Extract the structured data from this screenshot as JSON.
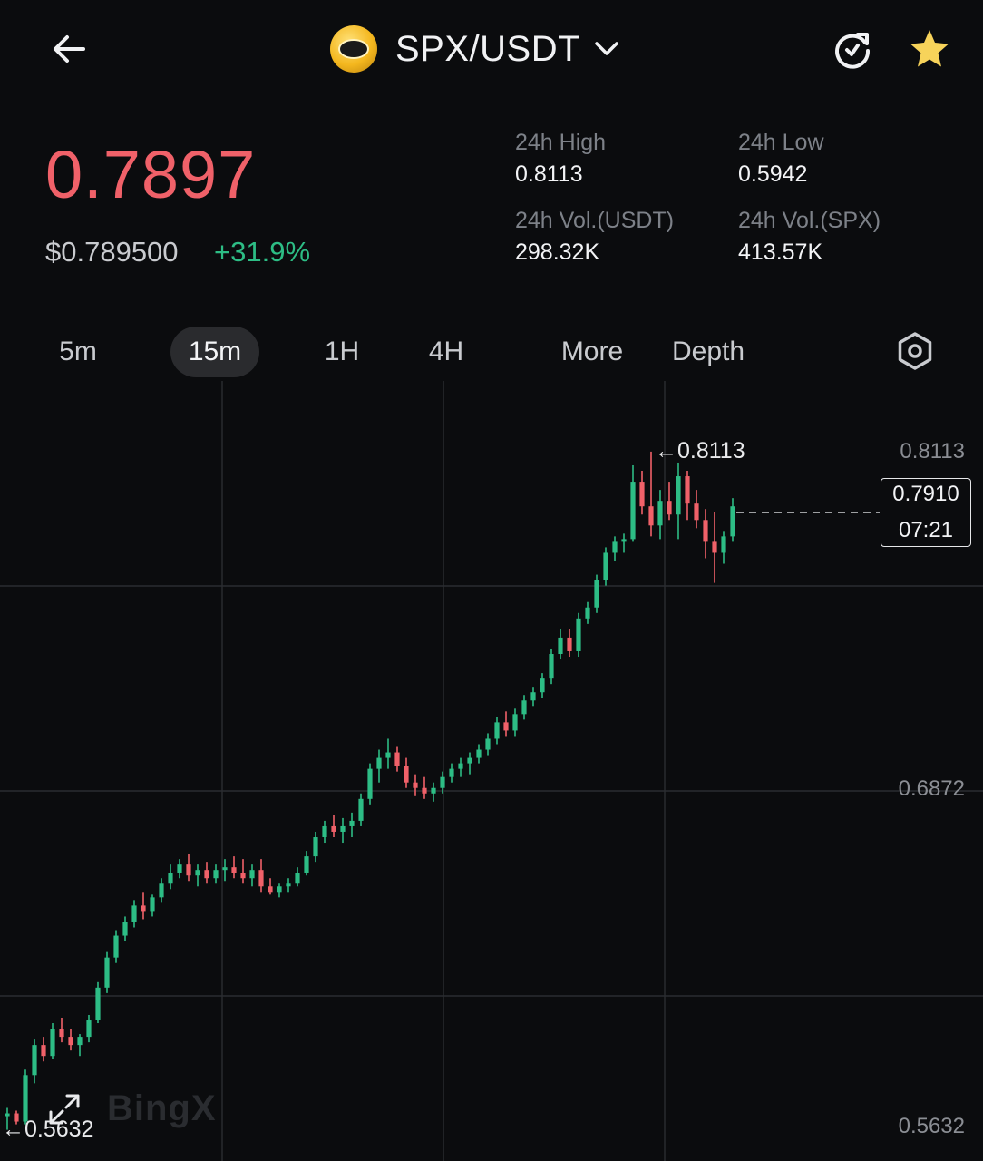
{
  "header": {
    "pair": "SPX/USDT",
    "icons": [
      "back-arrow-icon",
      "coin-logo-icon",
      "chevron-down-icon",
      "refresh-icon",
      "star-icon"
    ]
  },
  "ticker": {
    "last_price": "0.7897",
    "usd_price": "$0.789500",
    "change": "+31.9%",
    "stats": [
      {
        "label": "24h High",
        "value": "0.8113"
      },
      {
        "label": "24h Low",
        "value": "0.5942"
      },
      {
        "label": "24h Vol.(USDT)",
        "value": "298.32K"
      },
      {
        "label": "24h Vol.(SPX)",
        "value": "413.57K"
      }
    ]
  },
  "tabs": [
    {
      "label": "5m",
      "active": false
    },
    {
      "label": "15m",
      "active": true
    },
    {
      "label": "1H",
      "active": false
    },
    {
      "label": "4H",
      "active": false
    },
    {
      "label": "More",
      "active": false
    },
    {
      "label": "Depth",
      "active": false
    }
  ],
  "chart": {
    "y_labels": [
      "0.8113",
      "0.6872",
      "0.5632"
    ],
    "current_price": "0.7910",
    "countdown": "07:21",
    "high_marker": "←0.8113",
    "low_marker": "←0.5632",
    "watermark": "BingX"
  },
  "colors": {
    "up": "#2dbd85",
    "down": "#f06169",
    "background": "#0b0c0e"
  },
  "chart_data": {
    "type": "candlestick",
    "y_ticks": [
      0.8113,
      0.6872,
      0.5632
    ],
    "ylim": [
      0.5632,
      0.8113
    ],
    "high": 0.8113,
    "low": 0.5632,
    "current": 0.791,
    "candles_ohlc": [
      [
        0.568,
        0.571,
        0.563,
        0.569
      ],
      [
        0.569,
        0.57,
        0.565,
        0.566
      ],
      [
        0.566,
        0.585,
        0.565,
        0.583
      ],
      [
        0.583,
        0.596,
        0.58,
        0.594
      ],
      [
        0.594,
        0.597,
        0.588,
        0.59
      ],
      [
        0.59,
        0.602,
        0.589,
        0.6
      ],
      [
        0.6,
        0.604,
        0.595,
        0.597
      ],
      [
        0.597,
        0.6,
        0.592,
        0.594
      ],
      [
        0.594,
        0.598,
        0.59,
        0.597
      ],
      [
        0.597,
        0.605,
        0.595,
        0.603
      ],
      [
        0.603,
        0.617,
        0.602,
        0.615
      ],
      [
        0.615,
        0.628,
        0.613,
        0.626
      ],
      [
        0.626,
        0.636,
        0.624,
        0.634
      ],
      [
        0.634,
        0.641,
        0.632,
        0.639
      ],
      [
        0.639,
        0.647,
        0.637,
        0.645
      ],
      [
        0.645,
        0.65,
        0.64,
        0.643
      ],
      [
        0.643,
        0.649,
        0.641,
        0.648
      ],
      [
        0.648,
        0.655,
        0.646,
        0.653
      ],
      [
        0.653,
        0.66,
        0.651,
        0.657
      ],
      [
        0.657,
        0.662,
        0.655,
        0.66
      ],
      [
        0.66,
        0.664,
        0.654,
        0.656
      ],
      [
        0.656,
        0.66,
        0.652,
        0.658
      ],
      [
        0.658,
        0.661,
        0.653,
        0.655
      ],
      [
        0.655,
        0.66,
        0.653,
        0.658
      ],
      [
        0.658,
        0.662,
        0.654,
        0.659
      ],
      [
        0.659,
        0.663,
        0.655,
        0.657
      ],
      [
        0.657,
        0.662,
        0.653,
        0.655
      ],
      [
        0.655,
        0.66,
        0.652,
        0.658
      ],
      [
        0.658,
        0.662,
        0.65,
        0.652
      ],
      [
        0.652,
        0.655,
        0.649,
        0.65
      ],
      [
        0.65,
        0.653,
        0.648,
        0.652
      ],
      [
        0.652,
        0.655,
        0.65,
        0.653
      ],
      [
        0.653,
        0.659,
        0.652,
        0.657
      ],
      [
        0.657,
        0.665,
        0.656,
        0.663
      ],
      [
        0.663,
        0.672,
        0.661,
        0.67
      ],
      [
        0.67,
        0.676,
        0.668,
        0.674
      ],
      [
        0.674,
        0.678,
        0.67,
        0.672
      ],
      [
        0.672,
        0.677,
        0.668,
        0.674
      ],
      [
        0.674,
        0.679,
        0.67,
        0.676
      ],
      [
        0.676,
        0.686,
        0.674,
        0.684
      ],
      [
        0.684,
        0.697,
        0.682,
        0.695
      ],
      [
        0.695,
        0.702,
        0.69,
        0.699
      ],
      [
        0.699,
        0.706,
        0.695,
        0.701
      ],
      [
        0.701,
        0.703,
        0.694,
        0.696
      ],
      [
        0.696,
        0.699,
        0.688,
        0.69
      ],
      [
        0.69,
        0.693,
        0.685,
        0.688
      ],
      [
        0.688,
        0.692,
        0.684,
        0.686
      ],
      [
        0.686,
        0.69,
        0.683,
        0.688
      ],
      [
        0.688,
        0.694,
        0.686,
        0.692
      ],
      [
        0.692,
        0.697,
        0.69,
        0.695
      ],
      [
        0.695,
        0.699,
        0.692,
        0.697
      ],
      [
        0.697,
        0.701,
        0.693,
        0.699
      ],
      [
        0.699,
        0.704,
        0.697,
        0.702
      ],
      [
        0.702,
        0.708,
        0.7,
        0.706
      ],
      [
        0.706,
        0.714,
        0.704,
        0.712
      ],
      [
        0.712,
        0.716,
        0.707,
        0.709
      ],
      [
        0.709,
        0.717,
        0.707,
        0.715
      ],
      [
        0.715,
        0.722,
        0.713,
        0.72
      ],
      [
        0.72,
        0.725,
        0.718,
        0.723
      ],
      [
        0.723,
        0.73,
        0.721,
        0.728
      ],
      [
        0.728,
        0.739,
        0.726,
        0.737
      ],
      [
        0.737,
        0.746,
        0.735,
        0.743
      ],
      [
        0.743,
        0.746,
        0.736,
        0.738
      ],
      [
        0.738,
        0.752,
        0.736,
        0.75
      ],
      [
        0.75,
        0.756,
        0.748,
        0.754
      ],
      [
        0.754,
        0.766,
        0.752,
        0.764
      ],
      [
        0.764,
        0.776,
        0.762,
        0.774
      ],
      [
        0.774,
        0.78,
        0.771,
        0.778
      ],
      [
        0.778,
        0.781,
        0.774,
        0.779
      ],
      [
        0.779,
        0.806,
        0.778,
        0.8
      ],
      [
        0.8,
        0.804,
        0.788,
        0.791
      ],
      [
        0.791,
        0.811,
        0.78,
        0.784
      ],
      [
        0.784,
        0.797,
        0.779,
        0.793
      ],
      [
        0.793,
        0.8,
        0.786,
        0.788
      ],
      [
        0.788,
        0.807,
        0.779,
        0.802
      ],
      [
        0.802,
        0.804,
        0.786,
        0.792
      ],
      [
        0.792,
        0.797,
        0.783,
        0.786
      ],
      [
        0.786,
        0.79,
        0.772,
        0.778
      ],
      [
        0.778,
        0.789,
        0.763,
        0.774
      ],
      [
        0.774,
        0.782,
        0.77,
        0.78
      ],
      [
        0.78,
        0.794,
        0.778,
        0.791
      ]
    ]
  }
}
